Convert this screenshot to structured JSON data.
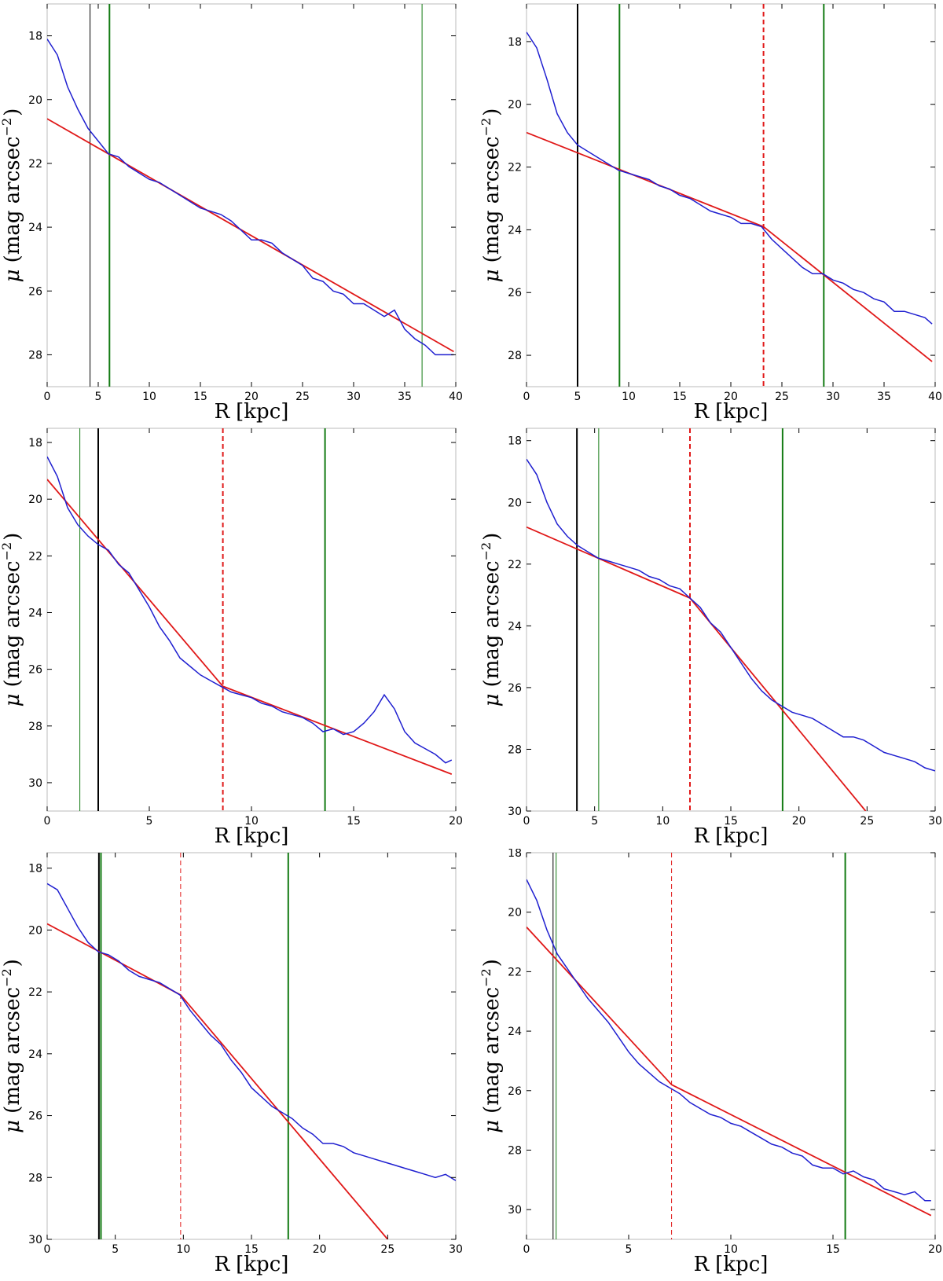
{
  "colors": {
    "profile": "#1f1fd0",
    "fit": "#e01818",
    "break": "#e01818",
    "green_marker": "#137a13",
    "black_marker": "#000000",
    "frame": "#bbbbbb"
  },
  "chart_data": [
    {
      "type": "line",
      "xlabel_main": "R",
      "xlabel_unit": "[kpc]",
      "ylabel_main": "μ",
      "ylabel_unit": "(mag arcsec",
      "ylabel_exp": "−2",
      "ylabel_close": ")",
      "xlim": [
        0,
        40
      ],
      "ylim": [
        29,
        17
      ],
      "xticks": [
        "0",
        "5",
        "10",
        "15",
        "20",
        "25",
        "30",
        "35",
        "40"
      ],
      "yticks": [
        "18",
        "20",
        "22",
        "24",
        "26",
        "28"
      ],
      "vlines": [
        {
          "x": 4.2,
          "color": "black",
          "style": "solid",
          "width": 1
        },
        {
          "x": 6.1,
          "color": "green",
          "style": "solid",
          "width": 2
        },
        {
          "x": 36.7,
          "color": "green",
          "style": "solid",
          "width": 1
        }
      ],
      "fit_segments": [
        {
          "x": [
            0,
            39.8
          ],
          "y": [
            20.6,
            27.9
          ]
        }
      ],
      "profile": {
        "x": [
          0,
          1,
          2,
          3,
          4,
          5,
          6,
          7,
          8,
          9,
          10,
          11,
          12,
          13,
          14,
          15,
          16,
          17,
          18,
          19,
          20,
          21,
          22,
          23,
          24,
          25,
          26,
          27,
          28,
          29,
          30,
          31,
          32,
          33,
          34,
          35,
          36,
          37,
          38,
          39,
          39.8
        ],
        "y": [
          18.1,
          18.6,
          19.6,
          20.3,
          20.9,
          21.3,
          21.7,
          21.8,
          22.1,
          22.3,
          22.5,
          22.6,
          22.8,
          23.0,
          23.2,
          23.4,
          23.5,
          23.6,
          23.8,
          24.1,
          24.4,
          24.4,
          24.5,
          24.8,
          25.0,
          25.2,
          25.6,
          25.7,
          26.0,
          26.1,
          26.4,
          26.4,
          26.6,
          26.8,
          26.6,
          27.2,
          27.5,
          27.7,
          28.0,
          28.0,
          28.0
        ]
      }
    },
    {
      "type": "line",
      "xlabel_main": "R",
      "xlabel_unit": "[kpc]",
      "ylabel_main": "μ",
      "ylabel_unit": "(mag arcsec",
      "ylabel_exp": "−2",
      "ylabel_close": ")",
      "xlim": [
        0,
        40
      ],
      "ylim": [
        29,
        16.8
      ],
      "xticks": [
        "0",
        "5",
        "10",
        "15",
        "20",
        "25",
        "30",
        "35",
        "40"
      ],
      "yticks": [
        "18",
        "20",
        "22",
        "24",
        "26",
        "28"
      ],
      "vlines": [
        {
          "x": 5.0,
          "color": "black",
          "style": "solid",
          "width": 2
        },
        {
          "x": 9.1,
          "color": "green",
          "style": "solid",
          "width": 2
        },
        {
          "x": 23.2,
          "color": "red",
          "style": "dashed",
          "width": 2
        },
        {
          "x": 29.1,
          "color": "green",
          "style": "solid",
          "width": 2
        }
      ],
      "fit_segments": [
        {
          "x": [
            0,
            23.2
          ],
          "y": [
            20.9,
            23.9
          ]
        },
        {
          "x": [
            23.2,
            39.7
          ],
          "y": [
            23.9,
            28.2
          ]
        }
      ],
      "profile": {
        "x": [
          0,
          1,
          2,
          3,
          4,
          5,
          6,
          7,
          8,
          9,
          10,
          11,
          12,
          13,
          14,
          15,
          16,
          17,
          18,
          19,
          20,
          21,
          22,
          23,
          24,
          25,
          26,
          27,
          28,
          29,
          30,
          31,
          32,
          33,
          34,
          35,
          36,
          37,
          38,
          39,
          39.7
        ],
        "y": [
          17.7,
          18.2,
          19.2,
          20.3,
          20.9,
          21.3,
          21.5,
          21.7,
          21.9,
          22.1,
          22.2,
          22.3,
          22.4,
          22.6,
          22.7,
          22.9,
          23.0,
          23.2,
          23.4,
          23.5,
          23.6,
          23.8,
          23.8,
          23.9,
          24.3,
          24.6,
          24.9,
          25.2,
          25.4,
          25.4,
          25.6,
          25.7,
          25.9,
          26.0,
          26.2,
          26.3,
          26.6,
          26.6,
          26.7,
          26.8,
          27.0
        ]
      }
    },
    {
      "type": "line",
      "xlabel_main": "R",
      "xlabel_unit": "[kpc]",
      "ylabel_main": "μ",
      "ylabel_unit": "(mag arcsec",
      "ylabel_exp": "−2",
      "ylabel_close": ")",
      "xlim": [
        0,
        20
      ],
      "ylim": [
        31,
        17.5
      ],
      "xticks": [
        "0",
        "5",
        "10",
        "15",
        "20"
      ],
      "yticks": [
        "18",
        "20",
        "22",
        "24",
        "26",
        "28",
        "30"
      ],
      "vlines": [
        {
          "x": 1.6,
          "color": "green",
          "style": "solid",
          "width": 1
        },
        {
          "x": 2.5,
          "color": "black",
          "style": "solid",
          "width": 2
        },
        {
          "x": 8.6,
          "color": "red",
          "style": "dashed",
          "width": 2
        },
        {
          "x": 13.6,
          "color": "green",
          "style": "solid",
          "width": 2
        }
      ],
      "fit_segments": [
        {
          "x": [
            0,
            8.6
          ],
          "y": [
            19.3,
            26.6
          ]
        },
        {
          "x": [
            8.6,
            19.8
          ],
          "y": [
            26.6,
            29.7
          ]
        }
      ],
      "profile": {
        "x": [
          0,
          0.5,
          1,
          1.5,
          2,
          2.5,
          3,
          3.5,
          4,
          4.5,
          5,
          5.5,
          6,
          6.5,
          7,
          7.5,
          8,
          8.5,
          9,
          9.5,
          10,
          10.5,
          11,
          11.5,
          12,
          12.5,
          13,
          13.5,
          14,
          14.5,
          15,
          15.5,
          16,
          16.5,
          17,
          17.5,
          18,
          18.5,
          19,
          19.5,
          19.8
        ],
        "y": [
          18.5,
          19.2,
          20.3,
          20.9,
          21.3,
          21.6,
          21.8,
          22.3,
          22.6,
          23.2,
          23.8,
          24.5,
          25.0,
          25.6,
          25.9,
          26.2,
          26.4,
          26.6,
          26.8,
          26.9,
          27.0,
          27.2,
          27.3,
          27.5,
          27.6,
          27.7,
          27.9,
          28.2,
          28.1,
          28.3,
          28.2,
          27.9,
          27.5,
          26.9,
          27.4,
          28.2,
          28.6,
          28.8,
          29.0,
          29.3,
          29.2
        ]
      }
    },
    {
      "type": "line",
      "xlabel_main": "R",
      "xlabel_unit": "[kpc]",
      "ylabel_main": "μ",
      "ylabel_unit": "(mag arcsec",
      "ylabel_exp": "−2",
      "ylabel_close": ")",
      "xlim": [
        0,
        30
      ],
      "ylim": [
        30,
        17.6
      ],
      "xticks": [
        "0",
        "5",
        "10",
        "15",
        "20",
        "25",
        "30"
      ],
      "yticks": [
        "18",
        "20",
        "22",
        "24",
        "26",
        "28",
        "30"
      ],
      "vlines": [
        {
          "x": 3.7,
          "color": "black",
          "style": "solid",
          "width": 2
        },
        {
          "x": 5.3,
          "color": "green",
          "style": "solid",
          "width": 1
        },
        {
          "x": 12.0,
          "color": "red",
          "style": "dashed",
          "width": 2
        },
        {
          "x": 18.8,
          "color": "green",
          "style": "solid",
          "width": 2
        }
      ],
      "fit_segments": [
        {
          "x": [
            0,
            12.0
          ],
          "y": [
            20.8,
            23.1
          ]
        },
        {
          "x": [
            12.0,
            24.9
          ],
          "y": [
            23.1,
            30.0
          ]
        }
      ],
      "profile": {
        "x": [
          0,
          0.75,
          1.5,
          2.25,
          3,
          3.75,
          4.5,
          5.25,
          6,
          6.75,
          7.5,
          8.25,
          9,
          9.75,
          10.5,
          11.25,
          12,
          12.75,
          13.5,
          14.25,
          15,
          15.75,
          16.5,
          17.25,
          18,
          18.75,
          19.5,
          20.25,
          21,
          21.75,
          22.5,
          23.25,
          24,
          24.75,
          25.5,
          26.25,
          27,
          27.75,
          28.5,
          29.25,
          30
        ],
        "y": [
          18.6,
          19.1,
          20.0,
          20.7,
          21.1,
          21.4,
          21.6,
          21.8,
          21.9,
          22.0,
          22.1,
          22.2,
          22.4,
          22.5,
          22.7,
          22.8,
          23.1,
          23.4,
          23.9,
          24.2,
          24.7,
          25.2,
          25.7,
          26.1,
          26.4,
          26.6,
          26.8,
          26.9,
          27.0,
          27.2,
          27.4,
          27.6,
          27.6,
          27.7,
          27.9,
          28.1,
          28.2,
          28.3,
          28.4,
          28.6,
          28.7
        ]
      }
    },
    {
      "type": "line",
      "xlabel_main": "R",
      "xlabel_unit": "[kpc]",
      "ylabel_main": "μ",
      "ylabel_unit": "(mag arcsec",
      "ylabel_exp": "−2",
      "ylabel_close": ")",
      "xlim": [
        0,
        30
      ],
      "ylim": [
        30,
        17.5
      ],
      "xticks": [
        "0",
        "5",
        "10",
        "15",
        "20",
        "25",
        "30"
      ],
      "yticks": [
        "18",
        "20",
        "22",
        "24",
        "26",
        "28",
        "30"
      ],
      "vlines": [
        {
          "x": 3.8,
          "color": "black",
          "style": "solid",
          "width": 2
        },
        {
          "x": 3.95,
          "color": "green",
          "style": "solid",
          "width": 2
        },
        {
          "x": 9.8,
          "color": "red",
          "style": "dashed",
          "width": 1
        },
        {
          "x": 17.7,
          "color": "green",
          "style": "solid",
          "width": 2
        }
      ],
      "fit_segments": [
        {
          "x": [
            0,
            9.8
          ],
          "y": [
            19.8,
            22.1
          ]
        },
        {
          "x": [
            9.8,
            25.0
          ],
          "y": [
            22.1,
            30.0
          ]
        }
      ],
      "profile": {
        "x": [
          0,
          0.75,
          1.5,
          2.25,
          3,
          3.75,
          4.5,
          5.25,
          6,
          6.75,
          7.5,
          8.25,
          9,
          9.75,
          10.5,
          11.25,
          12,
          12.75,
          13.5,
          14.25,
          15,
          15.75,
          16.5,
          17.25,
          18,
          18.75,
          19.5,
          20.25,
          21,
          21.75,
          22.5,
          23.25,
          24,
          24.75,
          25.5,
          26.25,
          27,
          27.75,
          28.5,
          29.25,
          30
        ],
        "y": [
          18.5,
          18.7,
          19.3,
          19.9,
          20.4,
          20.7,
          20.8,
          21.0,
          21.3,
          21.5,
          21.6,
          21.7,
          21.9,
          22.1,
          22.6,
          23.0,
          23.4,
          23.7,
          24.2,
          24.6,
          25.1,
          25.4,
          25.7,
          25.9,
          26.1,
          26.4,
          26.6,
          26.9,
          26.9,
          27.0,
          27.2,
          27.3,
          27.4,
          27.5,
          27.6,
          27.7,
          27.8,
          27.9,
          28.0,
          27.9,
          28.1
        ]
      }
    },
    {
      "type": "line",
      "xlabel_main": "R",
      "xlabel_unit": "[kpc]",
      "ylabel_main": "μ",
      "ylabel_unit": "(mag arcsec",
      "ylabel_exp": "−2",
      "ylabel_close": ")",
      "xlim": [
        0,
        20
      ],
      "ylim": [
        31,
        18
      ],
      "xticks": [
        "0",
        "5",
        "10",
        "15",
        "20"
      ],
      "yticks": [
        "18",
        "20",
        "22",
        "24",
        "26",
        "28",
        "30"
      ],
      "vlines": [
        {
          "x": 1.3,
          "color": "black",
          "style": "solid",
          "width": 1
        },
        {
          "x": 1.45,
          "color": "green",
          "style": "solid",
          "width": 1
        },
        {
          "x": 7.1,
          "color": "red",
          "style": "dashed",
          "width": 1
        },
        {
          "x": 15.6,
          "color": "green",
          "style": "solid",
          "width": 2
        }
      ],
      "fit_segments": [
        {
          "x": [
            0,
            7.1
          ],
          "y": [
            20.5,
            25.8
          ]
        },
        {
          "x": [
            7.1,
            19.8
          ],
          "y": [
            25.8,
            30.2
          ]
        }
      ],
      "profile": {
        "x": [
          0,
          0.5,
          1,
          1.5,
          2,
          2.5,
          3,
          3.5,
          4,
          4.5,
          5,
          5.5,
          6,
          6.5,
          7,
          7.5,
          8,
          8.5,
          9,
          9.5,
          10,
          10.5,
          11,
          11.5,
          12,
          12.5,
          13,
          13.5,
          14,
          14.5,
          15,
          15.5,
          16,
          16.5,
          17,
          17.5,
          18,
          18.5,
          19,
          19.5,
          19.8
        ],
        "y": [
          18.9,
          19.6,
          20.6,
          21.4,
          21.9,
          22.4,
          22.9,
          23.3,
          23.7,
          24.2,
          24.7,
          25.1,
          25.4,
          25.7,
          25.9,
          26.1,
          26.4,
          26.6,
          26.8,
          26.9,
          27.1,
          27.2,
          27.4,
          27.6,
          27.8,
          27.9,
          28.1,
          28.2,
          28.5,
          28.6,
          28.6,
          28.8,
          28.7,
          28.9,
          29.0,
          29.3,
          29.4,
          29.5,
          29.4,
          29.7,
          29.7
        ]
      }
    }
  ]
}
